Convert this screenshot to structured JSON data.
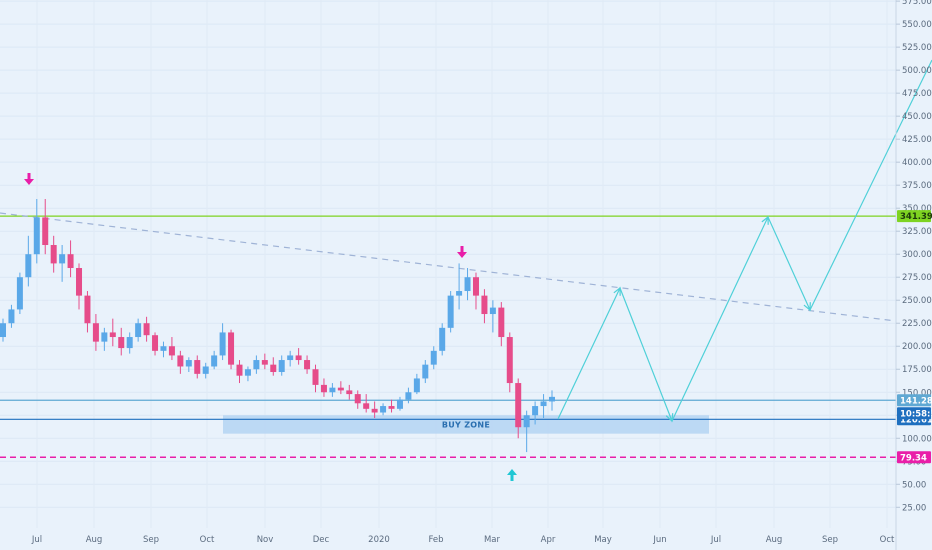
{
  "chart_data": {
    "type": "candlestick",
    "y_axis": {
      "ticks": [
        "25.00",
        "50.00",
        "75.00",
        "100.00",
        "125.00",
        "150.00",
        "175.00",
        "200.00",
        "225.00",
        "250.00",
        "275.00",
        "300.00",
        "325.00",
        "350.00",
        "375.00",
        "400.00",
        "425.00",
        "450.00",
        "475.00",
        "500.00",
        "525.00",
        "550.00",
        "575.00"
      ],
      "ylim": [
        0,
        585
      ]
    },
    "x_axis": {
      "labels": [
        "Jul",
        "Aug",
        "Sep",
        "Oct",
        "Nov",
        "Dec",
        "2020",
        "Feb",
        "Mar",
        "Apr",
        "May",
        "Jun",
        "Jul",
        "Aug",
        "Sep",
        "Oct"
      ]
    },
    "candles_ohlc": [
      [
        210,
        230,
        205,
        225
      ],
      [
        225,
        245,
        220,
        240
      ],
      [
        240,
        280,
        235,
        275
      ],
      [
        275,
        320,
        265,
        300
      ],
      [
        300,
        360,
        290,
        340
      ],
      [
        340,
        360,
        300,
        310
      ],
      [
        310,
        320,
        280,
        290
      ],
      [
        290,
        310,
        270,
        300
      ],
      [
        300,
        315,
        275,
        285
      ],
      [
        285,
        290,
        240,
        255
      ],
      [
        255,
        260,
        215,
        225
      ],
      [
        225,
        235,
        195,
        205
      ],
      [
        205,
        220,
        195,
        215
      ],
      [
        215,
        230,
        200,
        210
      ],
      [
        210,
        220,
        190,
        198
      ],
      [
        198,
        215,
        192,
        210
      ],
      [
        210,
        230,
        205,
        225
      ],
      [
        225,
        232,
        205,
        212
      ],
      [
        212,
        215,
        190,
        195
      ],
      [
        195,
        205,
        188,
        200
      ],
      [
        200,
        210,
        185,
        190
      ],
      [
        190,
        195,
        170,
        178
      ],
      [
        178,
        188,
        172,
        185
      ],
      [
        185,
        190,
        165,
        170
      ],
      [
        170,
        182,
        165,
        178
      ],
      [
        178,
        195,
        175,
        190
      ],
      [
        190,
        225,
        185,
        215
      ],
      [
        215,
        218,
        175,
        180
      ],
      [
        180,
        185,
        160,
        168
      ],
      [
        168,
        178,
        162,
        175
      ],
      [
        175,
        190,
        170,
        185
      ],
      [
        185,
        192,
        175,
        180
      ],
      [
        180,
        188,
        168,
        172
      ],
      [
        172,
        190,
        168,
        185
      ],
      [
        185,
        195,
        178,
        190
      ],
      [
        190,
        198,
        180,
        185
      ],
      [
        185,
        190,
        170,
        175
      ],
      [
        175,
        180,
        150,
        158
      ],
      [
        158,
        165,
        145,
        150
      ],
      [
        150,
        160,
        145,
        155
      ],
      [
        155,
        162,
        148,
        152
      ],
      [
        152,
        158,
        142,
        148
      ],
      [
        148,
        152,
        132,
        138
      ],
      [
        138,
        148,
        128,
        132
      ],
      [
        132,
        140,
        122,
        128
      ],
      [
        128,
        138,
        125,
        135
      ],
      [
        135,
        142,
        128,
        132
      ],
      [
        132,
        145,
        130,
        142
      ],
      [
        142,
        155,
        138,
        150
      ],
      [
        150,
        170,
        148,
        165
      ],
      [
        165,
        185,
        160,
        180
      ],
      [
        180,
        200,
        175,
        195
      ],
      [
        195,
        225,
        190,
        220
      ],
      [
        220,
        260,
        215,
        255
      ],
      [
        255,
        290,
        240,
        260
      ],
      [
        260,
        285,
        250,
        275
      ],
      [
        275,
        280,
        240,
        255
      ],
      [
        255,
        262,
        225,
        235
      ],
      [
        235,
        250,
        215,
        242
      ],
      [
        242,
        248,
        200,
        210
      ],
      [
        210,
        215,
        150,
        160
      ],
      [
        160,
        165,
        100,
        112
      ],
      [
        112,
        130,
        85,
        125
      ],
      [
        125,
        140,
        115,
        135
      ],
      [
        135,
        148,
        122,
        140
      ],
      [
        140,
        152,
        130,
        145
      ]
    ],
    "levels": [
      {
        "label": "341.39",
        "value": 341.39,
        "color": "#7ed321",
        "style": "solid"
      },
      {
        "label": "141.28",
        "value": 141.28,
        "color": "#5fa8d3",
        "style": "solid"
      },
      {
        "label": "120.61",
        "value": 120.61,
        "color": "#1e6fbf",
        "style": "solid"
      },
      {
        "label": "79.34",
        "value": 79.34,
        "color": "#e91ea8",
        "style": "dashed"
      }
    ],
    "countdown_label": "10:58:35",
    "buy_zone": {
      "label": "BUY ZONE",
      "y_low": 105,
      "y_high": 125
    },
    "trendline": {
      "color": "#9fb3d6",
      "style": "dashed"
    },
    "projection_color": "#4fd0d8",
    "arrow_colors": {
      "down": "#e91ea8",
      "up": "#1fc7d4"
    },
    "colors": {
      "up": "#5aa8e8",
      "down": "#e64c8a",
      "background": "#e9f2fb"
    }
  }
}
